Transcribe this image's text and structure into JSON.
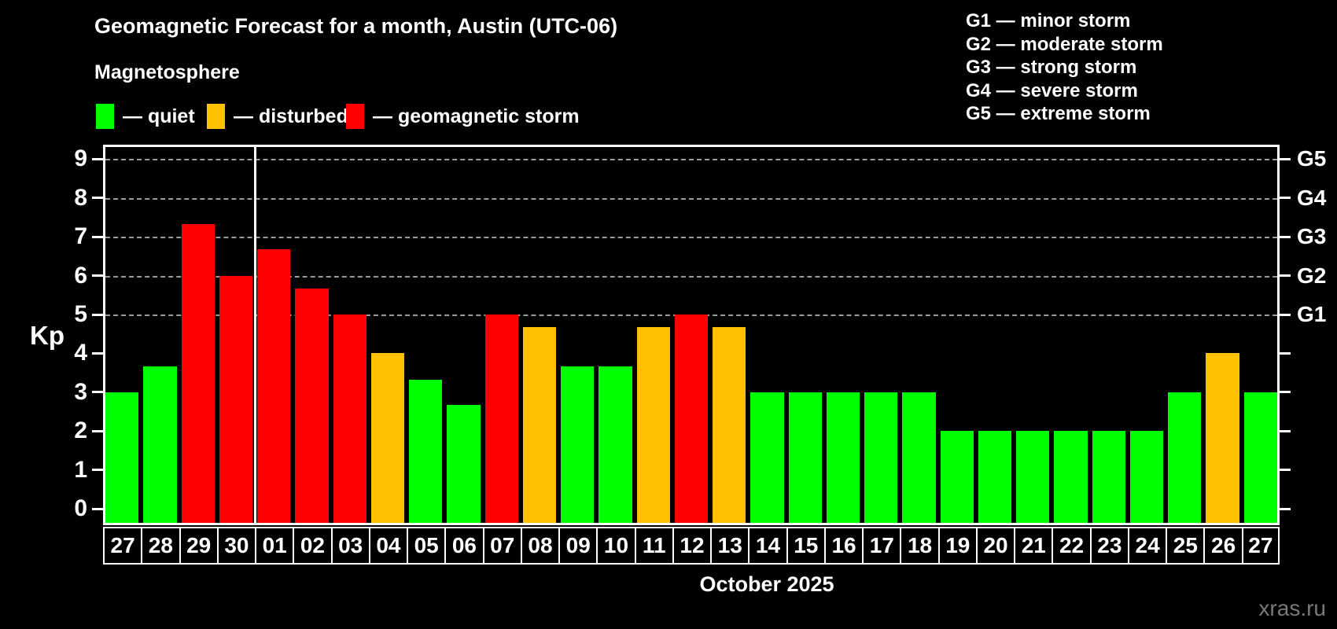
{
  "title": "Geomagnetic Forecast for a month, Austin (UTC-06)",
  "subtitle": "Magnetosphere",
  "legend": {
    "items": [
      {
        "key": "quiet",
        "label": "— quiet",
        "color": "#00ff00"
      },
      {
        "key": "disturbed",
        "label": "— disturbed",
        "color": "#ffc000"
      },
      {
        "key": "storm",
        "label": "— geomagnetic storm",
        "color": "#ff0000"
      }
    ]
  },
  "g_legend": [
    "G1 — minor storm",
    "G2 — moderate storm",
    "G3 — strong storm",
    "G4 — severe storm",
    "G5 — extreme storm"
  ],
  "axes": {
    "y_label": "Kp",
    "y_ticks": [
      0,
      1,
      2,
      3,
      4,
      5,
      6,
      7,
      8,
      9
    ],
    "right_labels": [
      {
        "value": 5,
        "label": "G1"
      },
      {
        "value": 6,
        "label": "G2"
      },
      {
        "value": 7,
        "label": "G3"
      },
      {
        "value": 8,
        "label": "G4"
      },
      {
        "value": 9,
        "label": "G5"
      }
    ],
    "x_label": "October 2025"
  },
  "watermark": "xras.ru",
  "colors": {
    "quiet": "#00ff00",
    "disturbed": "#ffc000",
    "storm": "#ff0000",
    "grid": "#9b9b9b",
    "frame": "#ffffff",
    "background": "#000000"
  },
  "chart_data": {
    "type": "bar",
    "title": "Geomagnetic Forecast for a month, Austin (UTC-06)",
    "xlabel": "October 2025",
    "ylabel": "Kp",
    "ylim": [
      0,
      9
    ],
    "grid_levels": [
      5,
      6,
      7,
      8,
      9
    ],
    "legend_position": "top",
    "month_boundary_after_index": 3,
    "categories": [
      "27",
      "28",
      "29",
      "30",
      "01",
      "02",
      "03",
      "04",
      "05",
      "06",
      "07",
      "08",
      "09",
      "10",
      "11",
      "12",
      "13",
      "14",
      "15",
      "16",
      "17",
      "18",
      "19",
      "20",
      "21",
      "22",
      "23",
      "24",
      "25",
      "26",
      "27"
    ],
    "values": [
      3,
      3.67,
      7.33,
      6,
      6.67,
      5.67,
      5,
      4,
      3.33,
      2.67,
      5,
      4.67,
      3.67,
      3.67,
      4.67,
      5,
      4.67,
      3,
      3,
      3,
      3,
      3,
      2,
      2,
      2,
      2,
      2,
      2,
      3,
      4,
      3
    ],
    "statuses": [
      "quiet",
      "quiet",
      "storm",
      "storm",
      "storm",
      "storm",
      "storm",
      "disturbed",
      "quiet",
      "quiet",
      "storm",
      "disturbed",
      "quiet",
      "quiet",
      "disturbed",
      "storm",
      "disturbed",
      "quiet",
      "quiet",
      "quiet",
      "quiet",
      "quiet",
      "quiet",
      "quiet",
      "quiet",
      "quiet",
      "quiet",
      "quiet",
      "quiet",
      "disturbed",
      "quiet"
    ]
  }
}
